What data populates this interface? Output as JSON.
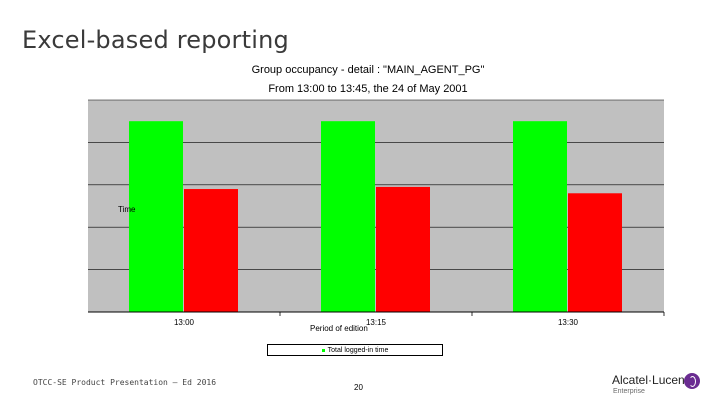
{
  "slide": {
    "title": "Excel-based reporting",
    "footer": "OTCC-SE Product Presentation – Ed 2016",
    "page_number": "20",
    "logo_name": "Alcatel·Lucent",
    "logo_sub": "Enterprise"
  },
  "colors": {
    "plot_background": "#c0c0c0",
    "series_green": "#00ff00",
    "series_red": "#ff0000"
  },
  "chart_data": {
    "type": "bar",
    "title": "Group occupancy - detail : \"MAIN_AGENT_PG\"",
    "subtitle": "From 13:00 to 13:45, the 24 of May 2001",
    "xlabel": "Period of edition",
    "ylabel": "Time",
    "categories": [
      "13:00",
      "13:15",
      "13:30"
    ],
    "series": [
      {
        "name": "Total logged-in time",
        "color": "#00ff00",
        "values": [
          4.5,
          4.5,
          4.5
        ]
      },
      {
        "color": "#ff0000",
        "values": [
          2.9,
          2.95,
          2.8
        ]
      }
    ],
    "ylim": [
      0,
      5
    ],
    "grid": true,
    "legend": "bottom"
  }
}
